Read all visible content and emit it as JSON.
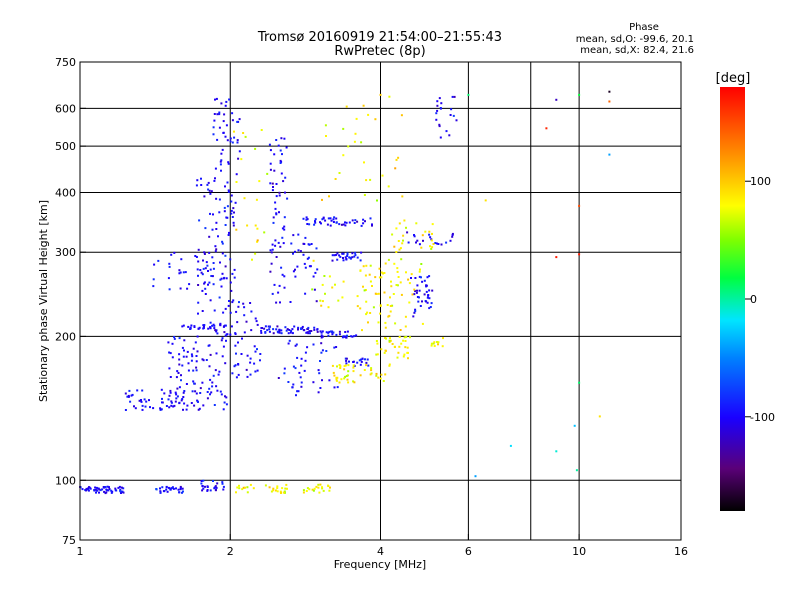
{
  "chart_data": {
    "type": "scatter",
    "title": "Tromsø 20160919 21:54:00–21:55:43",
    "subtitle": "RwPretec (8p)",
    "xlabel": "Frequency [MHz]",
    "ylabel": "Stationary phase Virtual Height [km]",
    "x_scale": "log",
    "y_scale": "log",
    "xlim": [
      1,
      16
    ],
    "ylim": [
      75,
      750
    ],
    "x_ticks": [
      "1",
      "2",
      "4",
      "6",
      "10",
      "16"
    ],
    "y_ticks": [
      "75",
      "100",
      "200",
      "300",
      "400",
      "500",
      "600",
      "750"
    ],
    "x_grid": [
      2,
      4,
      6,
      8,
      10
    ],
    "y_grid": [
      100,
      200,
      300,
      400,
      500,
      600
    ],
    "grid": true,
    "legend_placement": "top-right",
    "stats": {
      "title": "Phase",
      "line_o": "mean, sd,O: -99.6, 20.1",
      "line_x": "mean, sd,X: 82.4, 21.6"
    },
    "colorbar": {
      "label": "[deg]",
      "ticks": [
        "100",
        "0",
        "-100"
      ],
      "tick_values": [
        100,
        0,
        -100
      ],
      "range": [
        -180,
        180
      ]
    },
    "series": [
      {
        "mode": "O",
        "phase_mean": -99.6,
        "phase_sd": 20.1,
        "clusters": [
          {
            "f": [
              1.0,
              1.23
            ],
            "h": [
              94,
              97
            ],
            "n": 55
          },
          {
            "f": [
              1.42,
              1.62
            ],
            "h": [
              94,
              97
            ],
            "n": 30
          },
          {
            "f": [
              1.75,
              1.95
            ],
            "h": [
              95,
              100
            ],
            "n": 25
          },
          {
            "f": [
              1.22,
              1.6
            ],
            "h": [
              140,
              155
            ],
            "n": 45
          },
          {
            "f": [
              1.5,
              1.98
            ],
            "h": [
              140,
              200
            ],
            "n": 110
          },
          {
            "f": [
              1.7,
              2.05
            ],
            "h": [
              200,
              430
            ],
            "n": 110
          },
          {
            "f": [
              1.85,
              2.1
            ],
            "h": [
              430,
              640
            ],
            "n": 45
          },
          {
            "f": [
              1.6,
              1.95
            ],
            "h": [
              205,
              212
            ],
            "n": 30
          },
          {
            "f": [
              2.0,
              2.3
            ],
            "h": [
              160,
              240
            ],
            "n": 45
          },
          {
            "f": [
              2.3,
              3.0
            ],
            "h": [
              203,
              210
            ],
            "n": 60
          },
          {
            "f": [
              2.4,
              3.0
            ],
            "h": [
              230,
              330
            ],
            "n": 55
          },
          {
            "f": [
              2.4,
              2.6
            ],
            "h": [
              330,
              520
            ],
            "n": 40
          },
          {
            "f": [
              2.5,
              3.3
            ],
            "h": [
              150,
              200
            ],
            "n": 45
          },
          {
            "f": [
              3.0,
              3.6
            ],
            "h": [
              198,
              205
            ],
            "n": 30
          },
          {
            "f": [
              3.2,
              3.7
            ],
            "h": [
              288,
              300
            ],
            "n": 30
          },
          {
            "f": [
              3.4,
              3.8
            ],
            "h": [
              173,
              180
            ],
            "n": 20
          },
          {
            "f": [
              2.8,
              3.9
            ],
            "h": [
              340,
              355
            ],
            "n": 45
          },
          {
            "f": [
              4.6,
              5.1
            ],
            "h": [
              220,
              270
            ],
            "n": 40
          },
          {
            "f": [
              4.5,
              5.6
            ],
            "h": [
              310,
              330
            ],
            "n": 20
          },
          {
            "f": [
              5.1,
              5.7
            ],
            "h": [
              520,
              640
            ],
            "n": 20
          },
          {
            "f": [
              1.4,
              2.0
            ],
            "h": [
              250,
              300
            ],
            "n": 35
          }
        ]
      },
      {
        "mode": "X",
        "phase_mean": 82.4,
        "phase_sd": 21.6,
        "clusters": [
          {
            "f": [
              2.05,
              2.6
            ],
            "h": [
              94,
              98
            ],
            "n": 30
          },
          {
            "f": [
              2.8,
              3.2
            ],
            "h": [
              94,
              98
            ],
            "n": 20
          },
          {
            "f": [
              3.2,
              4.2
            ],
            "h": [
              160,
              175
            ],
            "n": 45
          },
          {
            "f": [
              3.9,
              4.6
            ],
            "h": [
              180,
              200
            ],
            "n": 35
          },
          {
            "f": [
              3.6,
              4.9
            ],
            "h": [
              205,
              300
            ],
            "n": 55
          },
          {
            "f": [
              4.2,
              5.2
            ],
            "h": [
              300,
              350
            ],
            "n": 25
          },
          {
            "f": [
              2.9,
              4.2
            ],
            "h": [
              230,
              290
            ],
            "n": 35
          },
          {
            "f": [
              3.0,
              4.5
            ],
            "h": [
              380,
              640
            ],
            "n": 30
          },
          {
            "f": [
              5.0,
              5.4
            ],
            "h": [
              190,
              200
            ],
            "n": 10
          },
          {
            "f": [
              2.0,
              2.4
            ],
            "h": [
              280,
              560
            ],
            "n": 20
          }
        ]
      }
    ],
    "sparse_points": [
      {
        "f": 6.2,
        "h": 102,
        "phase": -40
      },
      {
        "f": 7.3,
        "h": 118,
        "phase": -20
      },
      {
        "f": 9.0,
        "h": 115,
        "phase": -10
      },
      {
        "f": 9.9,
        "h": 105,
        "phase": 0
      },
      {
        "f": 9.8,
        "h": 130,
        "phase": -30
      },
      {
        "f": 10.0,
        "h": 160,
        "phase": 10
      },
      {
        "f": 11.0,
        "h": 136,
        "phase": 90
      },
      {
        "f": 9.0,
        "h": 293,
        "phase": 170
      },
      {
        "f": 10.0,
        "h": 297,
        "phase": 170
      },
      {
        "f": 10.0,
        "h": 375,
        "phase": 150
      },
      {
        "f": 8.6,
        "h": 545,
        "phase": 165
      },
      {
        "f": 9.0,
        "h": 625,
        "phase": -120
      },
      {
        "f": 10.0,
        "h": 640,
        "phase": 20
      },
      {
        "f": 11.5,
        "h": 650,
        "phase": -170
      },
      {
        "f": 11.5,
        "h": 620,
        "phase": 140
      },
      {
        "f": 11.5,
        "h": 480,
        "phase": -40
      },
      {
        "f": 6.5,
        "h": 385,
        "phase": 90
      },
      {
        "f": 6.0,
        "h": 640,
        "phase": 10
      },
      {
        "f": 4.0,
        "h": 640,
        "phase": 100
      }
    ]
  }
}
